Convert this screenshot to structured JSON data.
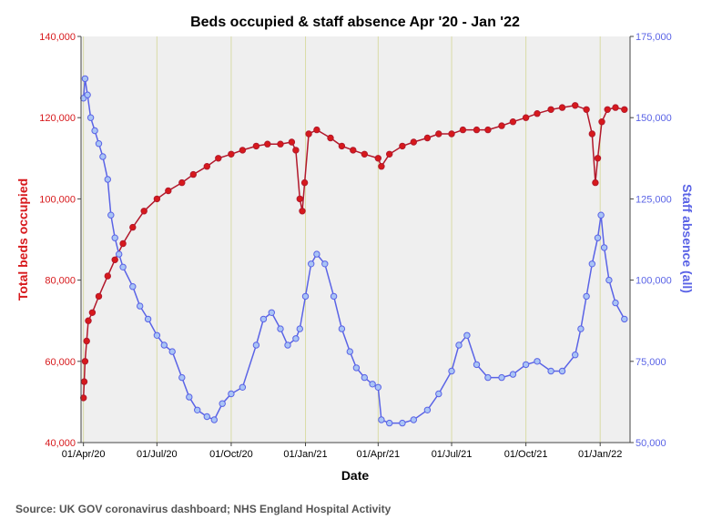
{
  "chart_data": {
    "type": "line",
    "title": "Beds occupied & staff absence Apr '20 - Jan '22",
    "xlabel": "Date",
    "ylabel_left": "Total beds occupied",
    "ylabel_right": "Staff absence (all)",
    "source": "Source: UK GOV coronavirus dashboard; NHS England Hospital Activity",
    "xlim": [
      "2020-03-29",
      "2022-02-07"
    ],
    "ylim_left": [
      40000,
      140000
    ],
    "ylim_right": [
      50000,
      175000
    ],
    "x_ticks": [
      {
        "date": "2020-04-01",
        "label": "01/Apr/20"
      },
      {
        "date": "2020-07-01",
        "label": "01/Jul/20"
      },
      {
        "date": "2020-10-01",
        "label": "01/Oct/20"
      },
      {
        "date": "2021-01-01",
        "label": "01/Jan/21"
      },
      {
        "date": "2021-04-01",
        "label": "01/Apr/21"
      },
      {
        "date": "2021-07-01",
        "label": "01/Jul/21"
      },
      {
        "date": "2021-10-01",
        "label": "01/Oct/21"
      },
      {
        "date": "2022-01-01",
        "label": "01/Jan/22"
      }
    ],
    "y_left_ticks": [
      "40,000",
      "60,000",
      "80,000",
      "100,000",
      "120,000",
      "140,000"
    ],
    "y_right_ticks": [
      "50,000",
      "75,000",
      "100,000",
      "125,000",
      "150,000",
      "175,000"
    ],
    "grid": "vertical lines at x ticks",
    "colors": {
      "beds": "#d7191c",
      "beds_line": "#b2182b",
      "staff": "#a9c4f5",
      "staff_line": "#5a63e6",
      "plot_bg": "#efefef",
      "grid": "#d9dba6"
    },
    "series": [
      {
        "axis": "left",
        "points": [
          [
            "2020-04-01",
            51000
          ],
          [
            "2020-04-02",
            55000
          ],
          [
            "2020-04-03",
            60000
          ],
          [
            "2020-04-05",
            65000
          ],
          [
            "2020-04-07",
            70000
          ],
          [
            "2020-04-12",
            72000
          ],
          [
            "2020-04-20",
            76000
          ],
          [
            "2020-05-01",
            81000
          ],
          [
            "2020-05-10",
            85000
          ],
          [
            "2020-05-20",
            89000
          ],
          [
            "2020-06-01",
            93000
          ],
          [
            "2020-06-15",
            97000
          ],
          [
            "2020-07-01",
            100000
          ],
          [
            "2020-07-15",
            102000
          ],
          [
            "2020-08-01",
            104000
          ],
          [
            "2020-08-15",
            106000
          ],
          [
            "2020-09-01",
            108000
          ],
          [
            "2020-09-15",
            110000
          ],
          [
            "2020-10-01",
            111000
          ],
          [
            "2020-10-15",
            112000
          ],
          [
            "2020-11-01",
            113000
          ],
          [
            "2020-11-15",
            113500
          ],
          [
            "2020-12-01",
            113500
          ],
          [
            "2020-12-15",
            114000
          ],
          [
            "2020-12-20",
            112000
          ],
          [
            "2020-12-25",
            100000
          ],
          [
            "2020-12-28",
            97000
          ],
          [
            "2020-12-31",
            104000
          ],
          [
            "2021-01-05",
            116000
          ],
          [
            "2021-01-15",
            117000
          ],
          [
            "2021-02-01",
            115000
          ],
          [
            "2021-02-15",
            113000
          ],
          [
            "2021-03-01",
            112000
          ],
          [
            "2021-03-15",
            111000
          ],
          [
            "2021-04-01",
            110000
          ],
          [
            "2021-04-05",
            108000
          ],
          [
            "2021-04-15",
            111000
          ],
          [
            "2021-05-01",
            113000
          ],
          [
            "2021-05-15",
            114000
          ],
          [
            "2021-06-01",
            115000
          ],
          [
            "2021-06-15",
            116000
          ],
          [
            "2021-07-01",
            116000
          ],
          [
            "2021-07-15",
            117000
          ],
          [
            "2021-08-01",
            117000
          ],
          [
            "2021-08-15",
            117000
          ],
          [
            "2021-09-01",
            118000
          ],
          [
            "2021-09-15",
            119000
          ],
          [
            "2021-10-01",
            120000
          ],
          [
            "2021-10-15",
            121000
          ],
          [
            "2021-11-01",
            122000
          ],
          [
            "2021-11-15",
            122500
          ],
          [
            "2021-12-01",
            123000
          ],
          [
            "2021-12-15",
            122000
          ],
          [
            "2021-12-22",
            116000
          ],
          [
            "2021-12-26",
            104000
          ],
          [
            "2021-12-29",
            110000
          ],
          [
            "2022-01-03",
            119000
          ],
          [
            "2022-01-10",
            122000
          ],
          [
            "2022-01-20",
            122500
          ],
          [
            "2022-01-31",
            122000
          ]
        ]
      },
      {
        "axis": "right",
        "points": [
          [
            "2020-04-01",
            156000
          ],
          [
            "2020-04-03",
            162000
          ],
          [
            "2020-04-06",
            157000
          ],
          [
            "2020-04-10",
            150000
          ],
          [
            "2020-04-15",
            146000
          ],
          [
            "2020-04-20",
            142000
          ],
          [
            "2020-04-25",
            138000
          ],
          [
            "2020-05-01",
            131000
          ],
          [
            "2020-05-05",
            120000
          ],
          [
            "2020-05-10",
            113000
          ],
          [
            "2020-05-15",
            108000
          ],
          [
            "2020-05-20",
            104000
          ],
          [
            "2020-06-01",
            98000
          ],
          [
            "2020-06-10",
            92000
          ],
          [
            "2020-06-20",
            88000
          ],
          [
            "2020-07-01",
            83000
          ],
          [
            "2020-07-10",
            80000
          ],
          [
            "2020-07-20",
            78000
          ],
          [
            "2020-08-01",
            70000
          ],
          [
            "2020-08-10",
            64000
          ],
          [
            "2020-08-20",
            60000
          ],
          [
            "2020-09-01",
            58000
          ],
          [
            "2020-09-10",
            57000
          ],
          [
            "2020-09-20",
            62000
          ],
          [
            "2020-10-01",
            65000
          ],
          [
            "2020-10-15",
            67000
          ],
          [
            "2020-11-01",
            80000
          ],
          [
            "2020-11-10",
            88000
          ],
          [
            "2020-11-20",
            90000
          ],
          [
            "2020-12-01",
            85000
          ],
          [
            "2020-12-10",
            80000
          ],
          [
            "2020-12-20",
            82000
          ],
          [
            "2020-12-25",
            85000
          ],
          [
            "2021-01-01",
            95000
          ],
          [
            "2021-01-08",
            105000
          ],
          [
            "2021-01-15",
            108000
          ],
          [
            "2021-01-25",
            105000
          ],
          [
            "2021-02-05",
            95000
          ],
          [
            "2021-02-15",
            85000
          ],
          [
            "2021-02-25",
            78000
          ],
          [
            "2021-03-05",
            73000
          ],
          [
            "2021-03-15",
            70000
          ],
          [
            "2021-03-25",
            68000
          ],
          [
            "2021-04-01",
            67000
          ],
          [
            "2021-04-05",
            57000
          ],
          [
            "2021-04-15",
            56000
          ],
          [
            "2021-05-01",
            56000
          ],
          [
            "2021-05-15",
            57000
          ],
          [
            "2021-06-01",
            60000
          ],
          [
            "2021-06-15",
            65000
          ],
          [
            "2021-07-01",
            72000
          ],
          [
            "2021-07-10",
            80000
          ],
          [
            "2021-07-20",
            83000
          ],
          [
            "2021-08-01",
            74000
          ],
          [
            "2021-08-15",
            70000
          ],
          [
            "2021-09-01",
            70000
          ],
          [
            "2021-09-15",
            71000
          ],
          [
            "2021-10-01",
            74000
          ],
          [
            "2021-10-15",
            75000
          ],
          [
            "2021-11-01",
            72000
          ],
          [
            "2021-11-15",
            72000
          ],
          [
            "2021-12-01",
            77000
          ],
          [
            "2021-12-08",
            85000
          ],
          [
            "2021-12-15",
            95000
          ],
          [
            "2021-12-22",
            105000
          ],
          [
            "2021-12-29",
            113000
          ],
          [
            "2022-01-02",
            120000
          ],
          [
            "2022-01-06",
            110000
          ],
          [
            "2022-01-12",
            100000
          ],
          [
            "2022-01-20",
            93000
          ],
          [
            "2022-01-31",
            88000
          ]
        ]
      }
    ]
  }
}
